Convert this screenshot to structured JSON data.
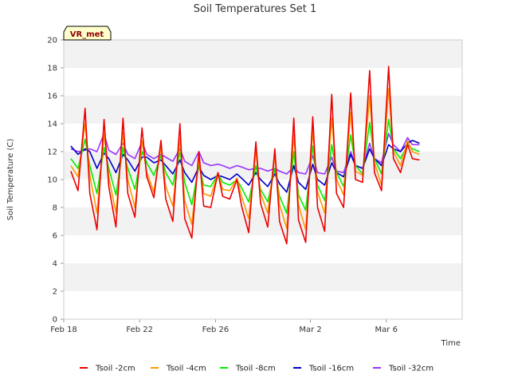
{
  "chart_data": {
    "type": "line",
    "title": "Soil Temperatures Set 1",
    "xlabel": "Time",
    "ylabel": "Soil Temperature (C)",
    "ylim": [
      0,
      20
    ],
    "yticks": [
      0,
      2,
      4,
      6,
      8,
      10,
      12,
      14,
      16,
      18,
      20
    ],
    "xlim": [
      "2024-02-18",
      "2024-03-10"
    ],
    "xtick_labels": [
      "Feb 18",
      "Feb 22",
      "Feb 26",
      "Mar 2",
      "Mar 6"
    ],
    "xtick_dates": [
      "2024-02-18",
      "2024-02-22",
      "2024-02-26",
      "2024-03-02",
      "2024-03-06"
    ],
    "grid": "horizontal bands",
    "legend_position": "bottom",
    "badge": "VR_met",
    "series": [
      {
        "name": "Tsoil -2cm",
        "color": "#ee0000",
        "x": [
          "2024-02-18 09:00",
          "2024-02-18 18:00",
          "2024-02-19 03:00",
          "2024-02-19 09:00",
          "2024-02-19 18:00",
          "2024-02-20 03:00",
          "2024-02-20 09:00",
          "2024-02-20 18:00",
          "2024-02-21 03:00",
          "2024-02-21 09:00",
          "2024-02-21 18:00",
          "2024-02-22 03:00",
          "2024-02-22 09:00",
          "2024-02-22 18:00",
          "2024-02-23 03:00",
          "2024-02-23 09:00",
          "2024-02-23 18:00",
          "2024-02-24 03:00",
          "2024-02-24 09:00",
          "2024-02-24 18:00",
          "2024-02-25 03:00",
          "2024-02-25 09:00",
          "2024-02-25 18:00",
          "2024-02-26 03:00",
          "2024-02-26 09:00",
          "2024-02-26 18:00",
          "2024-02-27 03:00",
          "2024-02-27 09:00",
          "2024-02-27 18:00",
          "2024-02-28 03:00",
          "2024-02-28 09:00",
          "2024-02-28 18:00",
          "2024-02-29 03:00",
          "2024-02-29 09:00",
          "2024-02-29 18:00",
          "2024-03-01 03:00",
          "2024-03-01 09:00",
          "2024-03-01 18:00",
          "2024-03-02 03:00",
          "2024-03-02 09:00",
          "2024-03-02 18:00",
          "2024-03-03 03:00",
          "2024-03-03 09:00",
          "2024-03-03 18:00",
          "2024-03-04 03:00",
          "2024-03-04 09:00",
          "2024-03-04 18:00",
          "2024-03-05 03:00",
          "2024-03-05 09:00",
          "2024-03-05 18:00",
          "2024-03-06 03:00",
          "2024-03-06 09:00",
          "2024-03-06 18:00",
          "2024-03-07 03:00",
          "2024-03-07 09:00",
          "2024-03-07 18:00"
        ],
        "y": [
          10.6,
          9.2,
          15.1,
          9.0,
          6.4,
          14.3,
          9.5,
          6.6,
          14.4,
          9.0,
          7.3,
          13.7,
          10.2,
          8.7,
          12.8,
          8.6,
          7.0,
          14.0,
          7.2,
          5.8,
          12.0,
          8.1,
          8.0,
          10.5,
          8.8,
          8.6,
          10.0,
          8.1,
          6.2,
          12.7,
          8.3,
          6.6,
          12.2,
          7.0,
          5.4,
          14.4,
          7.1,
          5.5,
          14.5,
          8.0,
          6.3,
          16.1,
          9.0,
          8.0,
          16.2,
          10.0,
          9.8,
          17.8,
          10.5,
          9.2,
          18.1,
          11.5,
          10.5,
          12.5,
          11.5,
          11.4
        ]
      },
      {
        "name": "Tsoil -4cm",
        "color": "#ff9900",
        "x": [
          "2024-02-18 09:00",
          "2024-02-18 18:00",
          "2024-02-19 03:00",
          "2024-02-19 09:00",
          "2024-02-19 18:00",
          "2024-02-20 03:00",
          "2024-02-20 09:00",
          "2024-02-20 18:00",
          "2024-02-21 03:00",
          "2024-02-21 09:00",
          "2024-02-21 18:00",
          "2024-02-22 03:00",
          "2024-02-22 09:00",
          "2024-02-22 18:00",
          "2024-02-23 03:00",
          "2024-02-23 09:00",
          "2024-02-23 18:00",
          "2024-02-24 03:00",
          "2024-02-24 09:00",
          "2024-02-24 18:00",
          "2024-02-25 03:00",
          "2024-02-25 09:00",
          "2024-02-25 18:00",
          "2024-02-26 03:00",
          "2024-02-26 09:00",
          "2024-02-26 18:00",
          "2024-02-27 03:00",
          "2024-02-27 09:00",
          "2024-02-27 18:00",
          "2024-02-28 03:00",
          "2024-02-28 09:00",
          "2024-02-28 18:00",
          "2024-02-29 03:00",
          "2024-02-29 09:00",
          "2024-02-29 18:00",
          "2024-03-01 03:00",
          "2024-03-01 09:00",
          "2024-03-01 18:00",
          "2024-03-02 03:00",
          "2024-03-02 09:00",
          "2024-03-02 18:00",
          "2024-03-03 03:00",
          "2024-03-03 09:00",
          "2024-03-03 18:00",
          "2024-03-04 03:00",
          "2024-03-04 09:00",
          "2024-03-04 18:00",
          "2024-03-05 03:00",
          "2024-03-05 09:00",
          "2024-03-05 18:00",
          "2024-03-06 03:00",
          "2024-03-06 09:00",
          "2024-03-06 18:00",
          "2024-03-07 03:00",
          "2024-03-07 09:00",
          "2024-03-07 18:00"
        ],
        "y": [
          11.0,
          10.2,
          14.0,
          10.3,
          7.6,
          13.3,
          10.2,
          7.6,
          13.4,
          10.0,
          8.0,
          12.8,
          10.5,
          9.1,
          12.3,
          9.5,
          8.1,
          13.0,
          8.5,
          6.8,
          11.5,
          9.0,
          8.8,
          10.5,
          9.3,
          9.2,
          10.1,
          8.8,
          7.2,
          12.0,
          9.0,
          7.6,
          11.7,
          8.2,
          6.5,
          13.3,
          8.2,
          6.4,
          13.5,
          9.1,
          7.6,
          14.4,
          10.0,
          8.9,
          14.8,
          10.6,
          10.3,
          16.0,
          11.2,
          9.6,
          16.5,
          12.0,
          11.0,
          12.8,
          12.0,
          11.8
        ]
      },
      {
        "name": "Tsoil -8cm",
        "color": "#00ee00",
        "x": [
          "2024-02-18 09:00",
          "2024-02-18 18:00",
          "2024-02-19 03:00",
          "2024-02-19 09:00",
          "2024-02-19 18:00",
          "2024-02-20 03:00",
          "2024-02-20 09:00",
          "2024-02-20 18:00",
          "2024-02-21 03:00",
          "2024-02-21 09:00",
          "2024-02-21 18:00",
          "2024-02-22 03:00",
          "2024-02-22 09:00",
          "2024-02-22 18:00",
          "2024-02-23 03:00",
          "2024-02-23 09:00",
          "2024-02-23 18:00",
          "2024-02-24 03:00",
          "2024-02-24 09:00",
          "2024-02-24 18:00",
          "2024-02-25 03:00",
          "2024-02-25 09:00",
          "2024-02-25 18:00",
          "2024-02-26 03:00",
          "2024-02-26 09:00",
          "2024-02-26 18:00",
          "2024-02-27 03:00",
          "2024-02-27 09:00",
          "2024-02-27 18:00",
          "2024-02-28 03:00",
          "2024-02-28 09:00",
          "2024-02-28 18:00",
          "2024-02-29 03:00",
          "2024-02-29 09:00",
          "2024-02-29 18:00",
          "2024-03-01 03:00",
          "2024-03-01 09:00",
          "2024-03-01 18:00",
          "2024-03-02 03:00",
          "2024-03-02 09:00",
          "2024-03-02 18:00",
          "2024-03-03 03:00",
          "2024-03-03 09:00",
          "2024-03-03 18:00",
          "2024-03-04 03:00",
          "2024-03-04 09:00",
          "2024-03-04 18:00",
          "2024-03-05 03:00",
          "2024-03-05 09:00",
          "2024-03-05 18:00",
          "2024-03-06 03:00",
          "2024-03-06 09:00",
          "2024-03-06 18:00",
          "2024-03-07 03:00",
          "2024-03-07 09:00",
          "2024-03-07 18:00"
        ],
        "y": [
          11.5,
          10.8,
          12.9,
          11.0,
          9.0,
          12.3,
          10.8,
          8.9,
          12.3,
          10.8,
          9.3,
          12.0,
          11.2,
          10.3,
          11.7,
          10.5,
          9.6,
          12.0,
          9.8,
          8.2,
          11.0,
          9.6,
          9.5,
          10.4,
          9.8,
          9.6,
          10.0,
          9.4,
          8.4,
          11.0,
          9.3,
          8.4,
          10.8,
          8.8,
          7.6,
          12.0,
          8.9,
          7.8,
          12.4,
          9.6,
          8.5,
          12.5,
          10.5,
          9.5,
          13.2,
          11.0,
          10.4,
          14.1,
          11.5,
          10.4,
          14.3,
          12.2,
          11.5,
          12.5,
          12.2,
          12.0
        ]
      },
      {
        "name": "Tsoil -16cm",
        "color": "#0000cc",
        "x": [
          "2024-02-18 09:00",
          "2024-02-18 18:00",
          "2024-02-19 03:00",
          "2024-02-19 09:00",
          "2024-02-19 18:00",
          "2024-02-20 03:00",
          "2024-02-20 09:00",
          "2024-02-20 18:00",
          "2024-02-21 03:00",
          "2024-02-21 09:00",
          "2024-02-21 18:00",
          "2024-02-22 03:00",
          "2024-02-22 09:00",
          "2024-02-22 18:00",
          "2024-02-23 03:00",
          "2024-02-23 09:00",
          "2024-02-23 18:00",
          "2024-02-24 03:00",
          "2024-02-24 09:00",
          "2024-02-24 18:00",
          "2024-02-25 03:00",
          "2024-02-25 09:00",
          "2024-02-25 18:00",
          "2024-02-26 03:00",
          "2024-02-26 09:00",
          "2024-02-26 18:00",
          "2024-02-27 03:00",
          "2024-02-27 09:00",
          "2024-02-27 18:00",
          "2024-02-28 03:00",
          "2024-02-28 09:00",
          "2024-02-28 18:00",
          "2024-02-29 03:00",
          "2024-02-29 09:00",
          "2024-02-29 18:00",
          "2024-03-01 03:00",
          "2024-03-01 09:00",
          "2024-03-01 18:00",
          "2024-03-02 03:00",
          "2024-03-02 09:00",
          "2024-03-02 18:00",
          "2024-03-03 03:00",
          "2024-03-03 09:00",
          "2024-03-03 18:00",
          "2024-03-04 03:00",
          "2024-03-04 09:00",
          "2024-03-04 18:00",
          "2024-03-05 03:00",
          "2024-03-05 09:00",
          "2024-03-05 18:00",
          "2024-03-06 03:00",
          "2024-03-06 09:00",
          "2024-03-06 18:00",
          "2024-03-07 03:00",
          "2024-03-07 09:00",
          "2024-03-07 18:00"
        ],
        "y": [
          12.4,
          11.8,
          12.2,
          12.0,
          10.8,
          11.9,
          11.5,
          10.5,
          11.8,
          11.4,
          10.6,
          11.6,
          11.6,
          11.2,
          11.4,
          11.0,
          10.4,
          11.4,
          10.5,
          9.8,
          10.9,
          10.3,
          10.0,
          10.3,
          10.2,
          10.0,
          10.4,
          10.1,
          9.6,
          10.5,
          10.0,
          9.5,
          10.4,
          9.7,
          9.1,
          11.0,
          9.8,
          9.3,
          11.1,
          10.0,
          9.6,
          11.2,
          10.5,
          10.2,
          11.8,
          11.0,
          10.8,
          12.2,
          11.5,
          11.0,
          12.5,
          12.2,
          12.0,
          12.6,
          12.8,
          12.6
        ]
      },
      {
        "name": "Tsoil -32cm",
        "color": "#9933ff",
        "x": [
          "2024-02-18 09:00",
          "2024-02-18 18:00",
          "2024-02-19 03:00",
          "2024-02-19 09:00",
          "2024-02-19 18:00",
          "2024-02-20 03:00",
          "2024-02-20 09:00",
          "2024-02-20 18:00",
          "2024-02-21 03:00",
          "2024-02-21 09:00",
          "2024-02-21 18:00",
          "2024-02-22 03:00",
          "2024-02-22 09:00",
          "2024-02-22 18:00",
          "2024-02-23 03:00",
          "2024-02-23 09:00",
          "2024-02-23 18:00",
          "2024-02-24 03:00",
          "2024-02-24 09:00",
          "2024-02-24 18:00",
          "2024-02-25 03:00",
          "2024-02-25 09:00",
          "2024-02-25 18:00",
          "2024-02-26 03:00",
          "2024-02-26 09:00",
          "2024-02-26 18:00",
          "2024-02-27 03:00",
          "2024-02-27 09:00",
          "2024-02-27 18:00",
          "2024-02-28 03:00",
          "2024-02-28 09:00",
          "2024-02-28 18:00",
          "2024-02-29 03:00",
          "2024-02-29 09:00",
          "2024-02-29 18:00",
          "2024-03-01 03:00",
          "2024-03-01 09:00",
          "2024-03-01 18:00",
          "2024-03-02 03:00",
          "2024-03-02 09:00",
          "2024-03-02 18:00",
          "2024-03-03 03:00",
          "2024-03-03 09:00",
          "2024-03-03 18:00",
          "2024-03-04 03:00",
          "2024-03-04 09:00",
          "2024-03-04 18:00",
          "2024-03-05 03:00",
          "2024-03-05 09:00",
          "2024-03-05 18:00",
          "2024-03-06 03:00",
          "2024-03-06 09:00",
          "2024-03-06 18:00",
          "2024-03-07 03:00",
          "2024-03-07 09:00",
          "2024-03-07 18:00"
        ],
        "y": [
          12.2,
          12.0,
          12.1,
          12.2,
          12.0,
          13.3,
          12.1,
          11.8,
          12.6,
          11.8,
          11.5,
          12.7,
          11.8,
          11.5,
          11.8,
          11.6,
          11.3,
          12.2,
          11.3,
          11.0,
          12.0,
          11.2,
          11.0,
          11.1,
          11.0,
          10.8,
          11.0,
          10.9,
          10.7,
          10.8,
          10.8,
          10.6,
          10.8,
          10.6,
          10.4,
          10.9,
          10.5,
          10.4,
          11.7,
          10.5,
          10.4,
          11.6,
          10.6,
          10.5,
          12.0,
          11.0,
          10.8,
          12.6,
          11.5,
          11.2,
          13.3,
          12.5,
          12.0,
          13.0,
          12.5,
          12.5
        ]
      }
    ]
  }
}
